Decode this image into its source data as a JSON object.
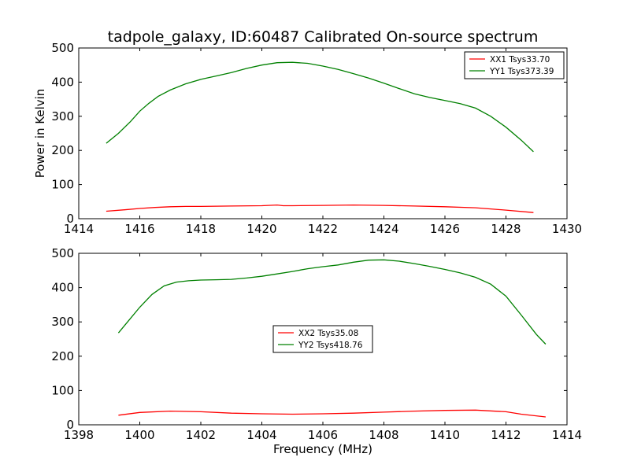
{
  "figure_title": "tadpole_galaxy, ID:60487 Calibrated On-source spectrum",
  "chart_data": [
    {
      "type": "line",
      "title": "tadpole_galaxy, ID:60487 Calibrated On-source spectrum",
      "xlabel": "",
      "ylabel": "Power in Kelvin",
      "xlim": [
        1414,
        1430
      ],
      "ylim": [
        0,
        500
      ],
      "xticks": [
        1414,
        1416,
        1418,
        1420,
        1422,
        1424,
        1426,
        1428,
        1430
      ],
      "yticks": [
        0,
        100,
        200,
        300,
        400,
        500
      ],
      "grid": false,
      "legend_position": "upper right",
      "series": [
        {
          "name": "XX1 Tsys33.70",
          "color": "#ff0000",
          "points": [
            [
              1414.9,
              22
            ],
            [
              1415.5,
              26
            ],
            [
              1416,
              30
            ],
            [
              1416.5,
              33
            ],
            [
              1417,
              35
            ],
            [
              1417.5,
              36
            ],
            [
              1418,
              36
            ],
            [
              1419,
              37
            ],
            [
              1420,
              38
            ],
            [
              1420.5,
              40
            ],
            [
              1420.7,
              38
            ],
            [
              1421,
              38
            ],
            [
              1422,
              39
            ],
            [
              1423,
              40
            ],
            [
              1424,
              39
            ],
            [
              1425,
              37
            ],
            [
              1426,
              35
            ],
            [
              1427,
              32
            ],
            [
              1428,
              25
            ],
            [
              1428.9,
              18
            ]
          ]
        },
        {
          "name": "YY1 Tsys373.39",
          "color": "#008000",
          "points": [
            [
              1414.9,
              221
            ],
            [
              1415.3,
              250
            ],
            [
              1415.7,
              285
            ],
            [
              1416,
              315
            ],
            [
              1416.3,
              338
            ],
            [
              1416.6,
              358
            ],
            [
              1417,
              377
            ],
            [
              1417.5,
              395
            ],
            [
              1418,
              408
            ],
            [
              1418.5,
              418
            ],
            [
              1419,
              428
            ],
            [
              1419.5,
              440
            ],
            [
              1420,
              450
            ],
            [
              1420.5,
              457
            ],
            [
              1421,
              458
            ],
            [
              1421.5,
              455
            ],
            [
              1422,
              447
            ],
            [
              1422.5,
              437
            ],
            [
              1423,
              425
            ],
            [
              1423.5,
              412
            ],
            [
              1424,
              397
            ],
            [
              1424.5,
              381
            ],
            [
              1425,
              366
            ],
            [
              1425.5,
              355
            ],
            [
              1426,
              346
            ],
            [
              1426.5,
              337
            ],
            [
              1427,
              324
            ],
            [
              1427.5,
              300
            ],
            [
              1428,
              268
            ],
            [
              1428.5,
              230
            ],
            [
              1428.9,
              196
            ]
          ]
        }
      ]
    },
    {
      "type": "line",
      "title": "",
      "xlabel": "Frequency (MHz)",
      "ylabel": "",
      "xlim": [
        1398,
        1414
      ],
      "ylim": [
        0,
        500
      ],
      "xticks": [
        1398,
        1400,
        1402,
        1404,
        1406,
        1408,
        1410,
        1412,
        1414
      ],
      "yticks": [
        0,
        100,
        200,
        300,
        400,
        500
      ],
      "grid": false,
      "legend_position": "center",
      "series": [
        {
          "name": "XX2 Tsys35.08",
          "color": "#ff0000",
          "points": [
            [
              1399.3,
              28
            ],
            [
              1400,
              36
            ],
            [
              1401,
              40
            ],
            [
              1402,
              38
            ],
            [
              1403,
              34
            ],
            [
              1404,
              32
            ],
            [
              1405,
              31
            ],
            [
              1406,
              32
            ],
            [
              1407,
              34
            ],
            [
              1408,
              37
            ],
            [
              1409,
              40
            ],
            [
              1410,
              42
            ],
            [
              1411,
              43
            ],
            [
              1412,
              38
            ],
            [
              1412.5,
              31
            ],
            [
              1413.3,
              23
            ]
          ]
        },
        {
          "name": "YY2 Tsys418.76",
          "color": "#008000",
          "points": [
            [
              1399.3,
              268
            ],
            [
              1399.6,
              300
            ],
            [
              1400,
              343
            ],
            [
              1400.4,
              380
            ],
            [
              1400.8,
              405
            ],
            [
              1401.2,
              416
            ],
            [
              1401.6,
              420
            ],
            [
              1402,
              422
            ],
            [
              1402.5,
              423
            ],
            [
              1403,
              424
            ],
            [
              1403.5,
              428
            ],
            [
              1404,
              433
            ],
            [
              1404.5,
              440
            ],
            [
              1405,
              447
            ],
            [
              1405.5,
              455
            ],
            [
              1406,
              461
            ],
            [
              1406.5,
              466
            ],
            [
              1407,
              474
            ],
            [
              1407.5,
              480
            ],
            [
              1408,
              481
            ],
            [
              1408.5,
              477
            ],
            [
              1409,
              470
            ],
            [
              1409.5,
              462
            ],
            [
              1410,
              453
            ],
            [
              1410.5,
              443
            ],
            [
              1411,
              430
            ],
            [
              1411.5,
              410
            ],
            [
              1412,
              375
            ],
            [
              1412.5,
              320
            ],
            [
              1413,
              263
            ],
            [
              1413.3,
              235
            ]
          ]
        }
      ]
    }
  ]
}
